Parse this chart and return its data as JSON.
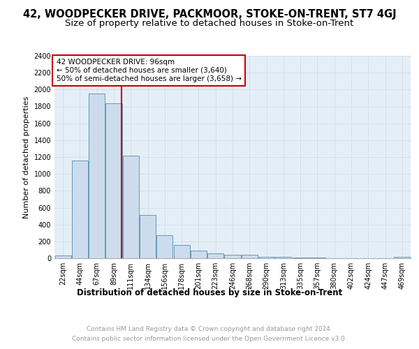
{
  "title": "42, WOODPECKER DRIVE, PACKMOOR, STOKE-ON-TRENT, ST7 4GJ",
  "subtitle": "Size of property relative to detached houses in Stoke-on-Trent",
  "xlabel": "Distribution of detached houses by size in Stoke-on-Trent",
  "ylabel": "Number of detached properties",
  "footer_line1": "Contains HM Land Registry data © Crown copyright and database right 2024.",
  "footer_line2": "Contains public sector information licensed under the Open Government Licence v3.0.",
  "bar_labels": [
    "22sqm",
    "44sqm",
    "67sqm",
    "89sqm",
    "111sqm",
    "134sqm",
    "156sqm",
    "178sqm",
    "201sqm",
    "223sqm",
    "246sqm",
    "268sqm",
    "290sqm",
    "313sqm",
    "335sqm",
    "357sqm",
    "380sqm",
    "402sqm",
    "424sqm",
    "447sqm",
    "469sqm"
  ],
  "bar_values": [
    30,
    1155,
    1950,
    1835,
    1220,
    510,
    270,
    155,
    90,
    55,
    45,
    45,
    20,
    15,
    8,
    5,
    4,
    3,
    3,
    3,
    20
  ],
  "bar_color": "#ccdcec",
  "bar_edge_color": "#6699bb",
  "ylim": [
    0,
    2400
  ],
  "yticks": [
    0,
    200,
    400,
    600,
    800,
    1000,
    1200,
    1400,
    1600,
    1800,
    2000,
    2200,
    2400
  ],
  "red_line_x": 3.45,
  "annotation_text": "42 WOODPECKER DRIVE: 96sqm\n← 50% of detached houses are smaller (3,640)\n50% of semi-detached houses are larger (3,658) →",
  "red_line_color": "#cc0000",
  "grid_color": "#d0dde8",
  "bg_color": "#e4eef6",
  "title_fontsize": 10.5,
  "subtitle_fontsize": 9.5,
  "ylabel_fontsize": 8,
  "xlabel_fontsize": 8.5,
  "tick_fontsize": 7,
  "ann_fontsize": 7.5,
  "footer_fontsize": 6.5,
  "footer_color": "#999999"
}
